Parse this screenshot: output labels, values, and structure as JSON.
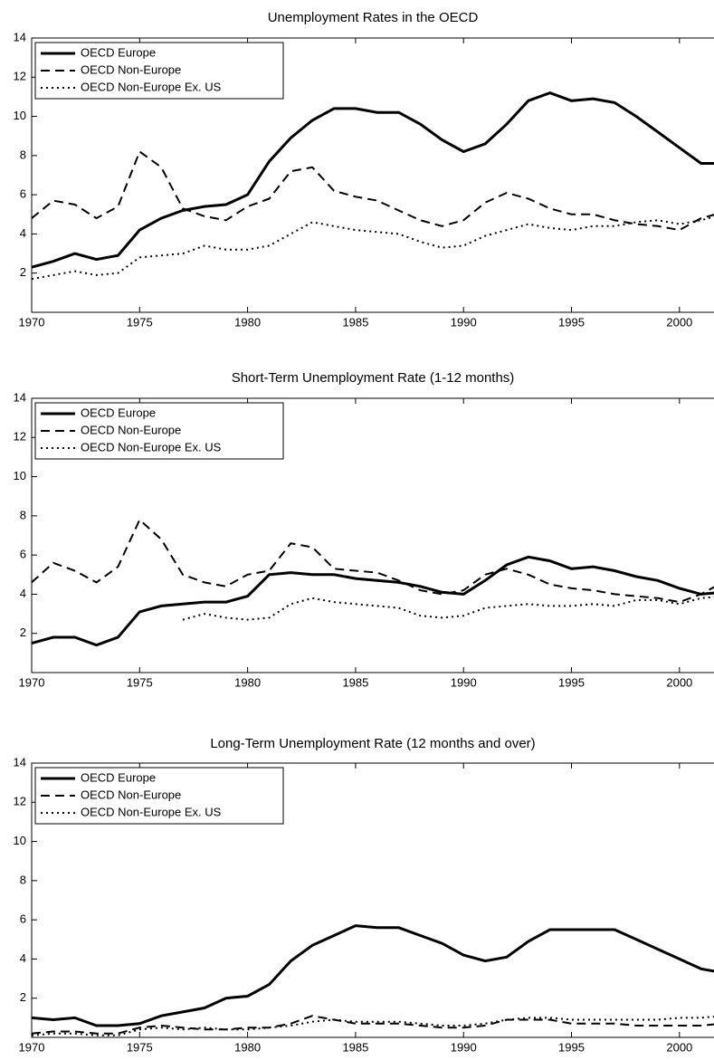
{
  "chart_data": [
    {
      "type": "line",
      "title": "Unemployment Rates in the OECD",
      "x": [
        1970,
        1971,
        1972,
        1973,
        1974,
        1975,
        1976,
        1977,
        1978,
        1979,
        1980,
        1981,
        1982,
        1983,
        1984,
        1985,
        1986,
        1987,
        1988,
        1989,
        1990,
        1991,
        1992,
        1993,
        1994,
        1995,
        1996,
        1997,
        1998,
        1999,
        2000,
        2001,
        2002
      ],
      "series": [
        {
          "name": "OECD Europe",
          "color": "#000000",
          "style": "solid",
          "values": [
            2.3,
            2.6,
            3.0,
            2.7,
            2.9,
            4.2,
            4.8,
            5.2,
            5.4,
            5.5,
            6.0,
            7.7,
            8.9,
            9.8,
            10.4,
            10.4,
            10.2,
            10.2,
            9.6,
            8.8,
            8.2,
            8.6,
            9.6,
            10.8,
            11.2,
            10.8,
            10.9,
            10.7,
            10.0,
            9.2,
            8.4,
            7.6,
            7.6
          ]
        },
        {
          "name": "OECD Non-Europe",
          "color": "#000000",
          "style": "dashed",
          "values": [
            4.8,
            5.7,
            5.5,
            4.8,
            5.4,
            8.2,
            7.4,
            5.3,
            4.9,
            4.7,
            5.4,
            5.8,
            7.2,
            7.4,
            6.2,
            5.9,
            5.7,
            5.2,
            4.7,
            4.4,
            4.7,
            5.6,
            6.1,
            5.8,
            5.3,
            5.0,
            5.0,
            4.7,
            4.5,
            4.4,
            4.2,
            4.8,
            5.1
          ]
        },
        {
          "name": "OECD Non-Europe Ex. US",
          "color": "#000000",
          "style": "dotted",
          "values": [
            1.7,
            1.9,
            2.1,
            1.9,
            2.0,
            2.8,
            2.9,
            3.0,
            3.4,
            3.2,
            3.2,
            3.4,
            4.0,
            4.6,
            4.4,
            4.2,
            4.1,
            4.0,
            3.6,
            3.3,
            3.4,
            3.9,
            4.2,
            4.5,
            4.3,
            4.2,
            4.4,
            4.4,
            4.6,
            4.7,
            4.5,
            4.7,
            5.0
          ]
        }
      ],
      "xlim": [
        1970,
        2001.6
      ],
      "xticks": [
        1970,
        1975,
        1980,
        1985,
        1990,
        1995,
        2000
      ],
      "ylim": [
        0,
        14
      ],
      "yticks": [
        2,
        4,
        6,
        8,
        10,
        12,
        14
      ],
      "legend": "upper left"
    },
    {
      "type": "line",
      "title": "Short-Term Unemployment Rate (1-12 months)",
      "x": [
        1970,
        1971,
        1972,
        1973,
        1974,
        1975,
        1976,
        1977,
        1978,
        1979,
        1980,
        1981,
        1982,
        1983,
        1984,
        1985,
        1986,
        1987,
        1988,
        1989,
        1990,
        1991,
        1992,
        1993,
        1994,
        1995,
        1996,
        1997,
        1998,
        1999,
        2000,
        2001,
        2002
      ],
      "series": [
        {
          "name": "OECD Europe",
          "color": "#000000",
          "style": "solid",
          "values": [
            1.5,
            1.8,
            1.8,
            1.4,
            1.8,
            3.1,
            3.4,
            3.5,
            3.6,
            3.6,
            3.9,
            5.0,
            5.1,
            5.0,
            5.0,
            4.8,
            4.7,
            4.6,
            4.4,
            4.1,
            4.0,
            4.7,
            5.5,
            5.9,
            5.7,
            5.3,
            5.4,
            5.2,
            4.9,
            4.7,
            4.3,
            4.0,
            4.1
          ]
        },
        {
          "name": "OECD Non-Europe",
          "color": "#000000",
          "style": "dashed",
          "values": [
            4.6,
            5.6,
            5.2,
            4.6,
            5.4,
            7.8,
            6.8,
            5.0,
            4.6,
            4.4,
            5.0,
            5.2,
            6.6,
            6.4,
            5.3,
            5.2,
            5.1,
            4.7,
            4.2,
            4.0,
            4.2,
            5.0,
            5.3,
            5.0,
            4.5,
            4.3,
            4.2,
            4.0,
            3.9,
            3.8,
            3.6,
            4.0,
            4.6
          ]
        },
        {
          "name": "OECD Non-Europe Ex. US",
          "color": "#000000",
          "style": "dotted",
          "values": [
            null,
            null,
            null,
            null,
            null,
            null,
            null,
            2.7,
            3.0,
            2.8,
            2.7,
            2.8,
            3.5,
            3.8,
            3.6,
            3.5,
            3.4,
            3.3,
            2.9,
            2.8,
            2.9,
            3.3,
            3.4,
            3.5,
            3.4,
            3.4,
            3.5,
            3.4,
            3.7,
            3.7,
            3.5,
            3.8,
            3.9
          ]
        }
      ],
      "xlim": [
        1970,
        2001.6
      ],
      "xticks": [
        1970,
        1975,
        1980,
        1985,
        1990,
        1995,
        2000
      ],
      "ylim": [
        0,
        14
      ],
      "yticks": [
        2,
        4,
        6,
        8,
        10,
        12,
        14
      ],
      "legend": "upper left"
    },
    {
      "type": "line",
      "title": "Long-Term Unemployment Rate (12 months and over)",
      "x": [
        1970,
        1971,
        1972,
        1973,
        1974,
        1975,
        1976,
        1977,
        1978,
        1979,
        1980,
        1981,
        1982,
        1983,
        1984,
        1985,
        1986,
        1987,
        1988,
        1989,
        1990,
        1991,
        1992,
        1993,
        1994,
        1995,
        1996,
        1997,
        1998,
        1999,
        2000,
        2001,
        2002
      ],
      "series": [
        {
          "name": "OECD Europe",
          "color": "#000000",
          "style": "solid",
          "values": [
            1.0,
            0.9,
            1.0,
            0.6,
            0.6,
            0.7,
            1.1,
            1.3,
            1.5,
            2.0,
            2.1,
            2.7,
            3.9,
            4.7,
            5.2,
            5.7,
            5.6,
            5.6,
            5.2,
            4.8,
            4.2,
            3.9,
            4.1,
            4.9,
            5.5,
            5.5,
            5.5,
            5.5,
            5.0,
            4.5,
            4.0,
            3.5,
            3.3
          ]
        },
        {
          "name": "OECD Non-Europe",
          "color": "#000000",
          "style": "dashed",
          "values": [
            0.2,
            0.3,
            0.3,
            0.2,
            0.2,
            0.5,
            0.6,
            0.5,
            0.4,
            0.4,
            0.5,
            0.5,
            0.7,
            1.1,
            0.9,
            0.7,
            0.7,
            0.7,
            0.6,
            0.5,
            0.5,
            0.6,
            0.9,
            0.9,
            0.9,
            0.7,
            0.7,
            0.7,
            0.6,
            0.6,
            0.6,
            0.6,
            0.7
          ]
        },
        {
          "name": "OECD Non-Europe Ex. US",
          "color": "#000000",
          "style": "dotted",
          "values": [
            0.1,
            0.2,
            0.2,
            0.1,
            0.1,
            0.4,
            0.5,
            0.4,
            0.5,
            0.4,
            0.4,
            0.5,
            0.6,
            0.8,
            0.9,
            0.8,
            0.8,
            0.8,
            0.7,
            0.6,
            0.6,
            0.7,
            0.9,
            1.0,
            1.0,
            0.9,
            0.9,
            0.9,
            0.9,
            0.9,
            1.0,
            1.0,
            1.1
          ]
        }
      ],
      "xlim": [
        1970,
        2001.6
      ],
      "xticks": [
        1970,
        1975,
        1980,
        1985,
        1990,
        1995,
        2000
      ],
      "ylim": [
        0,
        14
      ],
      "yticks": [
        2,
        4,
        6,
        8,
        10,
        12,
        14
      ],
      "legend": "upper left"
    }
  ]
}
